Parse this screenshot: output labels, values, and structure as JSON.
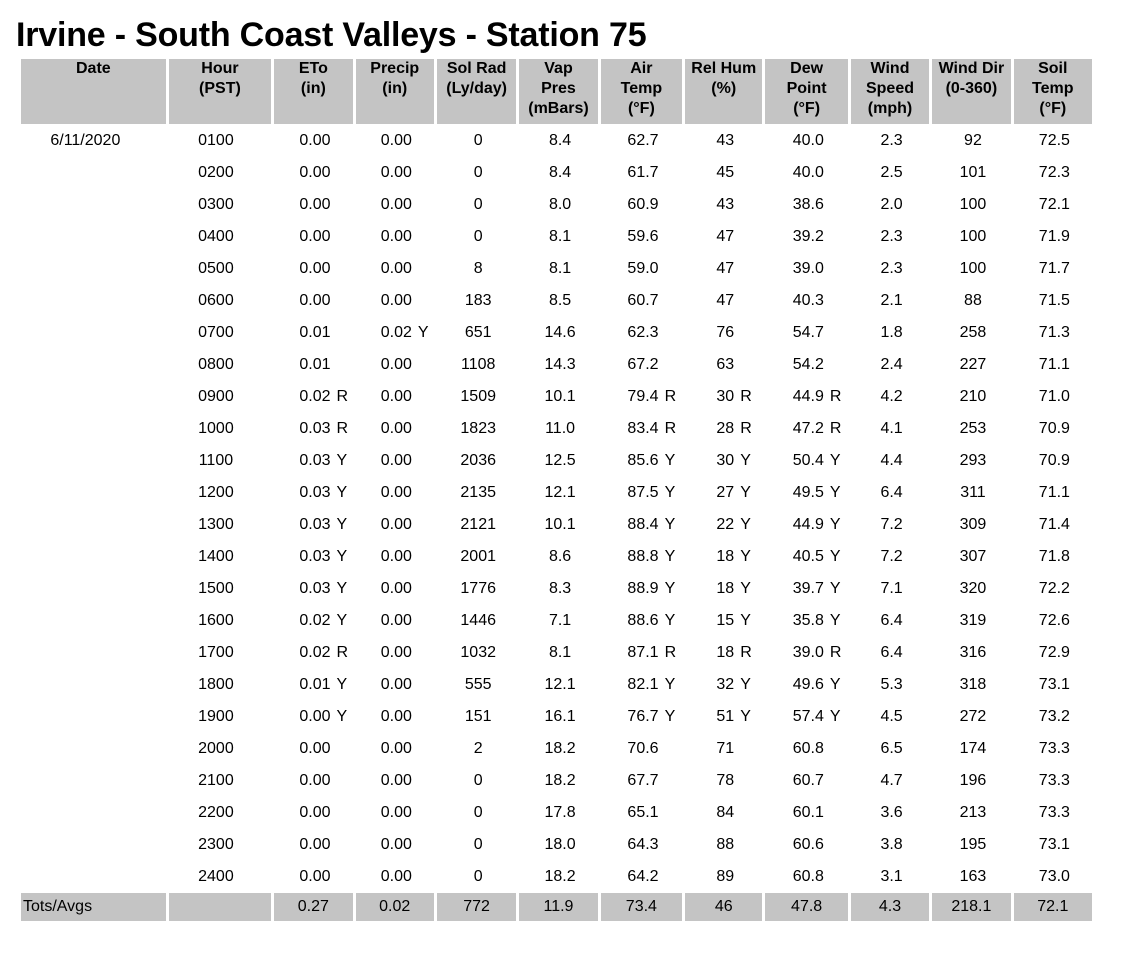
{
  "title": "Irvine - South Coast Valleys - Station 75",
  "columns": [
    [
      "Date"
    ],
    [
      "Hour",
      "(PST)"
    ],
    [
      "ETo",
      "(in)"
    ],
    [
      "Precip",
      "(in)"
    ],
    [
      "Sol Rad",
      "(Ly/day)"
    ],
    [
      "Vap",
      "Pres",
      "(mBars)"
    ],
    [
      "Air",
      "Temp",
      "(°F)"
    ],
    [
      "Rel Hum",
      "(%)"
    ],
    [
      "Dew",
      "Point",
      "(°F)"
    ],
    [
      "Wind",
      "Speed",
      "(mph)"
    ],
    [
      "Wind Dir",
      "(0-360)"
    ],
    [
      "Soil",
      "Temp",
      "(°F)"
    ]
  ],
  "date": "6/11/2020",
  "rows": [
    [
      "0100",
      "0.00",
      "",
      "0.00",
      "",
      "0",
      "8.4",
      "62.7",
      "",
      "43",
      "",
      "40.0",
      "",
      "2.3",
      "92",
      "72.5"
    ],
    [
      "0200",
      "0.00",
      "",
      "0.00",
      "",
      "0",
      "8.4",
      "61.7",
      "",
      "45",
      "",
      "40.0",
      "",
      "2.5",
      "101",
      "72.3"
    ],
    [
      "0300",
      "0.00",
      "",
      "0.00",
      "",
      "0",
      "8.0",
      "60.9",
      "",
      "43",
      "",
      "38.6",
      "",
      "2.0",
      "100",
      "72.1"
    ],
    [
      "0400",
      "0.00",
      "",
      "0.00",
      "",
      "0",
      "8.1",
      "59.6",
      "",
      "47",
      "",
      "39.2",
      "",
      "2.3",
      "100",
      "71.9"
    ],
    [
      "0500",
      "0.00",
      "",
      "0.00",
      "",
      "8",
      "8.1",
      "59.0",
      "",
      "47",
      "",
      "39.0",
      "",
      "2.3",
      "100",
      "71.7"
    ],
    [
      "0600",
      "0.00",
      "",
      "0.00",
      "",
      "183",
      "8.5",
      "60.7",
      "",
      "47",
      "",
      "40.3",
      "",
      "2.1",
      "88",
      "71.5"
    ],
    [
      "0700",
      "0.01",
      "",
      "0.02",
      "Y",
      "651",
      "14.6",
      "62.3",
      "",
      "76",
      "",
      "54.7",
      "",
      "1.8",
      "258",
      "71.3"
    ],
    [
      "0800",
      "0.01",
      "",
      "0.00",
      "",
      "1108",
      "14.3",
      "67.2",
      "",
      "63",
      "",
      "54.2",
      "",
      "2.4",
      "227",
      "71.1"
    ],
    [
      "0900",
      "0.02",
      "R",
      "0.00",
      "",
      "1509",
      "10.1",
      "79.4",
      "R",
      "30",
      "R",
      "44.9",
      "R",
      "4.2",
      "210",
      "71.0"
    ],
    [
      "1000",
      "0.03",
      "R",
      "0.00",
      "",
      "1823",
      "11.0",
      "83.4",
      "R",
      "28",
      "R",
      "47.2",
      "R",
      "4.1",
      "253",
      "70.9"
    ],
    [
      "1100",
      "0.03",
      "Y",
      "0.00",
      "",
      "2036",
      "12.5",
      "85.6",
      "Y",
      "30",
      "Y",
      "50.4",
      "Y",
      "4.4",
      "293",
      "70.9"
    ],
    [
      "1200",
      "0.03",
      "Y",
      "0.00",
      "",
      "2135",
      "12.1",
      "87.5",
      "Y",
      "27",
      "Y",
      "49.5",
      "Y",
      "6.4",
      "311",
      "71.1"
    ],
    [
      "1300",
      "0.03",
      "Y",
      "0.00",
      "",
      "2121",
      "10.1",
      "88.4",
      "Y",
      "22",
      "Y",
      "44.9",
      "Y",
      "7.2",
      "309",
      "71.4"
    ],
    [
      "1400",
      "0.03",
      "Y",
      "0.00",
      "",
      "2001",
      "8.6",
      "88.8",
      "Y",
      "18",
      "Y",
      "40.5",
      "Y",
      "7.2",
      "307",
      "71.8"
    ],
    [
      "1500",
      "0.03",
      "Y",
      "0.00",
      "",
      "1776",
      "8.3",
      "88.9",
      "Y",
      "18",
      "Y",
      "39.7",
      "Y",
      "7.1",
      "320",
      "72.2"
    ],
    [
      "1600",
      "0.02",
      "Y",
      "0.00",
      "",
      "1446",
      "7.1",
      "88.6",
      "Y",
      "15",
      "Y",
      "35.8",
      "Y",
      "6.4",
      "319",
      "72.6"
    ],
    [
      "1700",
      "0.02",
      "R",
      "0.00",
      "",
      "1032",
      "8.1",
      "87.1",
      "R",
      "18",
      "R",
      "39.0",
      "R",
      "6.4",
      "316",
      "72.9"
    ],
    [
      "1800",
      "0.01",
      "Y",
      "0.00",
      "",
      "555",
      "12.1",
      "82.1",
      "Y",
      "32",
      "Y",
      "49.6",
      "Y",
      "5.3",
      "318",
      "73.1"
    ],
    [
      "1900",
      "0.00",
      "Y",
      "0.00",
      "",
      "151",
      "16.1",
      "76.7",
      "Y",
      "51",
      "Y",
      "57.4",
      "Y",
      "4.5",
      "272",
      "73.2"
    ],
    [
      "2000",
      "0.00",
      "",
      "0.00",
      "",
      "2",
      "18.2",
      "70.6",
      "",
      "71",
      "",
      "60.8",
      "",
      "6.5",
      "174",
      "73.3"
    ],
    [
      "2100",
      "0.00",
      "",
      "0.00",
      "",
      "0",
      "18.2",
      "67.7",
      "",
      "78",
      "",
      "60.7",
      "",
      "4.7",
      "196",
      "73.3"
    ],
    [
      "2200",
      "0.00",
      "",
      "0.00",
      "",
      "0",
      "17.8",
      "65.1",
      "",
      "84",
      "",
      "60.1",
      "",
      "3.6",
      "213",
      "73.3"
    ],
    [
      "2300",
      "0.00",
      "",
      "0.00",
      "",
      "0",
      "18.0",
      "64.3",
      "",
      "88",
      "",
      "60.6",
      "",
      "3.8",
      "195",
      "73.1"
    ],
    [
      "2400",
      "0.00",
      "",
      "0.00",
      "",
      "0",
      "18.2",
      "64.2",
      "",
      "89",
      "",
      "60.8",
      "",
      "3.1",
      "163",
      "73.0"
    ]
  ],
  "totals": {
    "label": "Tots/Avgs",
    "values": [
      "",
      "0.27",
      "0.02",
      "772",
      "11.9",
      "73.4",
      "46",
      "47.8",
      "4.3",
      "218.1",
      "72.1"
    ]
  }
}
